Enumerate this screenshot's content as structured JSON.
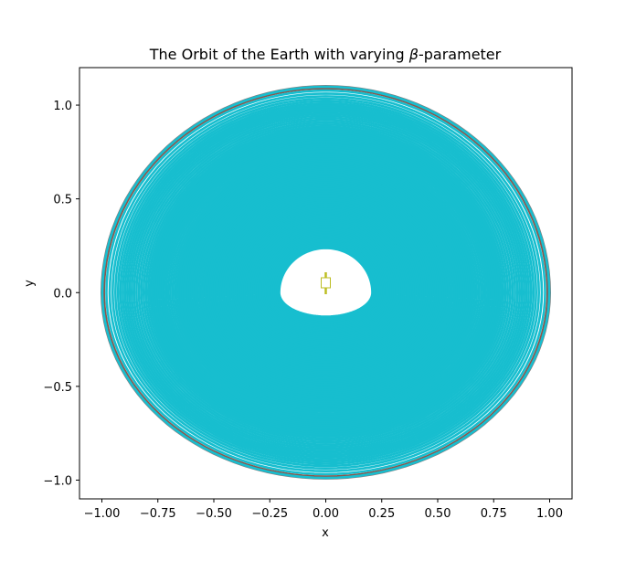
{
  "chart_data": {
    "type": "line",
    "title": "The Orbit of the Earth with varying β-parameter",
    "title_prefix": "The Orbit of the Earth with varying ",
    "title_symbol": "β",
    "title_suffix": "-parameter",
    "xlabel": "x",
    "ylabel": "y",
    "xlim": [
      -1.1,
      1.1
    ],
    "ylim": [
      -1.1,
      1.2
    ],
    "x_ticks": [
      -1.0,
      -0.75,
      -0.5,
      -0.25,
      0.0,
      0.25,
      0.5,
      0.75,
      1.0
    ],
    "x_tick_labels": [
      "−1.00",
      "−0.75",
      "−0.50",
      "−0.25",
      "0.00",
      "0.25",
      "0.50",
      "0.75",
      "1.00"
    ],
    "y_ticks": [
      -1.0,
      -0.5,
      0.0,
      0.5,
      1.0
    ],
    "y_tick_labels": [
      "−1.0",
      "−0.5",
      "0.0",
      "0.5",
      "1.0"
    ],
    "grid": false,
    "legend": "none",
    "orbits": {
      "outer_colors": [
        "#7f7f7f",
        "#e377c2",
        "#8c564b"
      ],
      "main_color": "#17becf",
      "center_marker_color": "#bcbd22",
      "x_semi_axis_max": 1.0,
      "x_semi_axis_min": 0.21,
      "y_top_max": 1.1,
      "y_top_min": 0.24,
      "y_bottom_max": -0.99,
      "y_bottom_min": -0.13
    }
  }
}
